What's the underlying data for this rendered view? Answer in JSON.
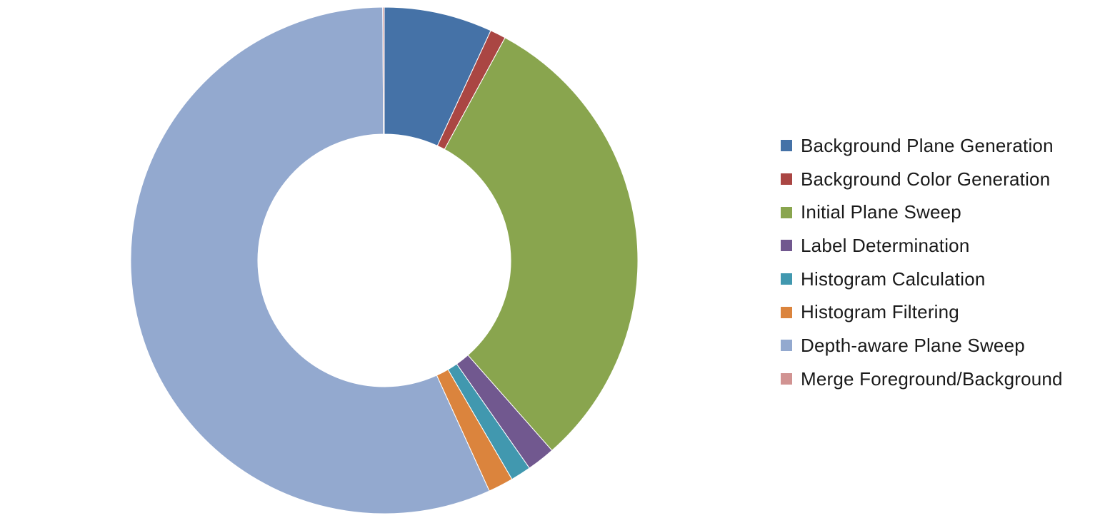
{
  "chart_data": {
    "type": "pie",
    "variant": "donut",
    "title": "",
    "legend_position": "right",
    "slices": [
      {
        "label": "Background Plane Generation",
        "value": 6.9,
        "color": "#4572A7"
      },
      {
        "label": "Background Color Generation",
        "value": 1.0,
        "color": "#AA4643"
      },
      {
        "label": "Initial Plane Sweep",
        "value": 30.6,
        "color": "#89A54E"
      },
      {
        "label": "Label Determination",
        "value": 1.8,
        "color": "#71588F"
      },
      {
        "label": "Histogram Calculation",
        "value": 1.3,
        "color": "#4198AF"
      },
      {
        "label": "Histogram Filtering",
        "value": 1.6,
        "color": "#DB843D"
      },
      {
        "label": "Depth-aware Plane Sweep",
        "value": 56.7,
        "color": "#93A9CF"
      },
      {
        "label": "Merge Foreground/Background",
        "value": 0.1,
        "color": "#D19392"
      }
    ]
  }
}
